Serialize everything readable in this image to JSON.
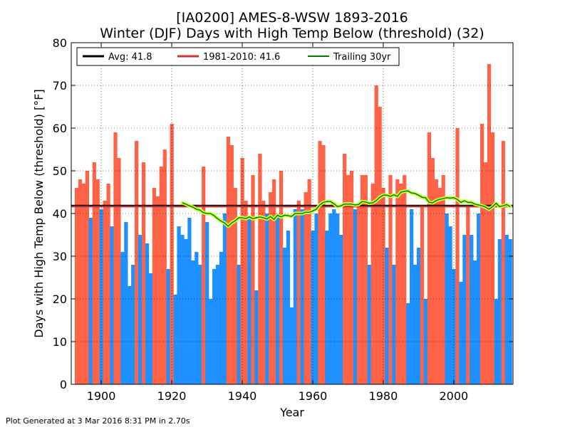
{
  "chart_data": {
    "type": "bar",
    "title": "[IA0200] AMES-8-WSW 1893-2016",
    "subtitle": "Winter (DJF) Days with High Temp Below (threshold) (32)",
    "xlabel": "Year",
    "ylabel": "Days with High Temp Below (threshold) [°F]",
    "xlim": [
      1891.5,
      2016.8
    ],
    "ylim": [
      0,
      80
    ],
    "xticks": [
      1900,
      1920,
      1940,
      1960,
      1980,
      2000
    ],
    "yticks": [
      0,
      10,
      20,
      30,
      40,
      50,
      60,
      70,
      80
    ],
    "grid": true,
    "legend_position": "top-left",
    "colors": {
      "above": "#ff6347",
      "below": "#1e90ff",
      "avg": "#000000",
      "climo": "#cc3333",
      "trailing": "#008000",
      "trailing_halo": "#ccff33"
    },
    "start_year": 1893,
    "values": [
      46,
      48,
      47,
      50,
      39,
      52,
      48,
      41,
      43,
      47,
      37,
      59,
      53,
      31,
      38,
      23,
      28,
      57,
      35,
      52,
      33,
      26,
      46,
      44,
      51,
      55,
      27,
      61,
      21,
      37,
      35,
      34,
      39,
      29,
      31,
      28,
      51,
      38,
      20,
      27,
      28,
      31,
      40,
      58,
      56,
      46,
      28,
      53,
      43,
      39,
      49,
      22,
      54,
      43,
      40,
      45,
      48,
      40,
      50,
      32,
      36,
      18,
      41,
      43,
      41,
      45,
      48,
      36,
      40,
      57,
      56,
      36,
      40,
      41,
      40,
      35,
      54,
      49,
      50,
      41,
      42,
      49,
      49,
      28,
      47,
      70,
      65,
      46,
      32,
      49,
      28,
      48,
      47,
      49,
      19,
      41,
      28,
      32,
      42,
      20,
      59,
      53,
      48,
      46,
      49,
      40,
      37,
      27,
      60,
      24,
      35,
      42,
      35,
      29,
      40,
      61,
      52,
      75,
      59,
      20,
      34,
      57,
      35,
      34
    ],
    "series": [
      {
        "name": "Avg: 41.8",
        "type": "hline",
        "value": 41.8
      },
      {
        "name": "1981-2010: 41.6",
        "type": "hline",
        "value": 41.6
      },
      {
        "name": "Trailing 30yr",
        "type": "line",
        "x": [
          1923,
          1924,
          1925,
          1926,
          1927,
          1928,
          1929,
          1930,
          1931,
          1932,
          1933,
          1934,
          1935,
          1936,
          1937,
          1938,
          1939,
          1940,
          1941,
          1942,
          1943,
          1944,
          1945,
          1946,
          1947,
          1948,
          1949,
          1950,
          1951,
          1952,
          1953,
          1954,
          1955,
          1956,
          1957,
          1958,
          1959,
          1960,
          1961,
          1962,
          1963,
          1964,
          1965,
          1966,
          1967,
          1968,
          1969,
          1970,
          1971,
          1972,
          1973,
          1974,
          1975,
          1976,
          1977,
          1978,
          1979,
          1980,
          1981,
          1982,
          1983,
          1984,
          1985,
          1986,
          1987,
          1988,
          1989,
          1990,
          1991,
          1992,
          1993,
          1994,
          1995,
          1996,
          1997,
          1998,
          1999,
          2000,
          2001,
          2002,
          2003,
          2004,
          2005,
          2006,
          2007,
          2008,
          2009,
          2010,
          2011,
          2012,
          2013,
          2014,
          2015,
          2016
        ],
        "values": [
          42.5,
          42.2,
          41.8,
          41.5,
          41.0,
          40.8,
          40.2,
          40.0,
          40.0,
          39.5,
          38.8,
          38.2,
          37.8,
          37.0,
          37.8,
          38.3,
          39.0,
          39.0,
          38.8,
          39.2,
          38.8,
          39.0,
          39.2,
          39.0,
          38.7,
          39.3,
          38.6,
          39.6,
          39.2,
          39.6,
          39.5,
          39.3,
          40.0,
          40.0,
          40.0,
          40.3,
          40.3,
          40.6,
          41.0,
          42.0,
          42.6,
          42.8,
          42.8,
          42.3,
          41.6,
          41.8,
          42.2,
          42.2,
          42.2,
          42.0,
          42.1,
          42.8,
          42.7,
          42.4,
          42.5,
          43.0,
          43.8,
          44.3,
          44.3,
          44.0,
          44.4,
          44.0,
          45.0,
          45.2,
          45.3,
          44.8,
          44.7,
          44.3,
          43.8,
          43.7,
          42.6,
          42.5,
          43.0,
          43.3,
          43.5,
          43.7,
          43.6,
          43.7,
          43.3,
          42.6,
          43.0,
          42.6,
          42.6,
          42.2,
          42.0,
          41.8,
          41.5,
          41.0,
          41.6,
          42.4,
          41.6,
          41.8,
          42.1,
          41.6
        ]
      }
    ],
    "footer": "Plot Generated at 3 Mar 2016 8:31 PM in 2.70s"
  }
}
